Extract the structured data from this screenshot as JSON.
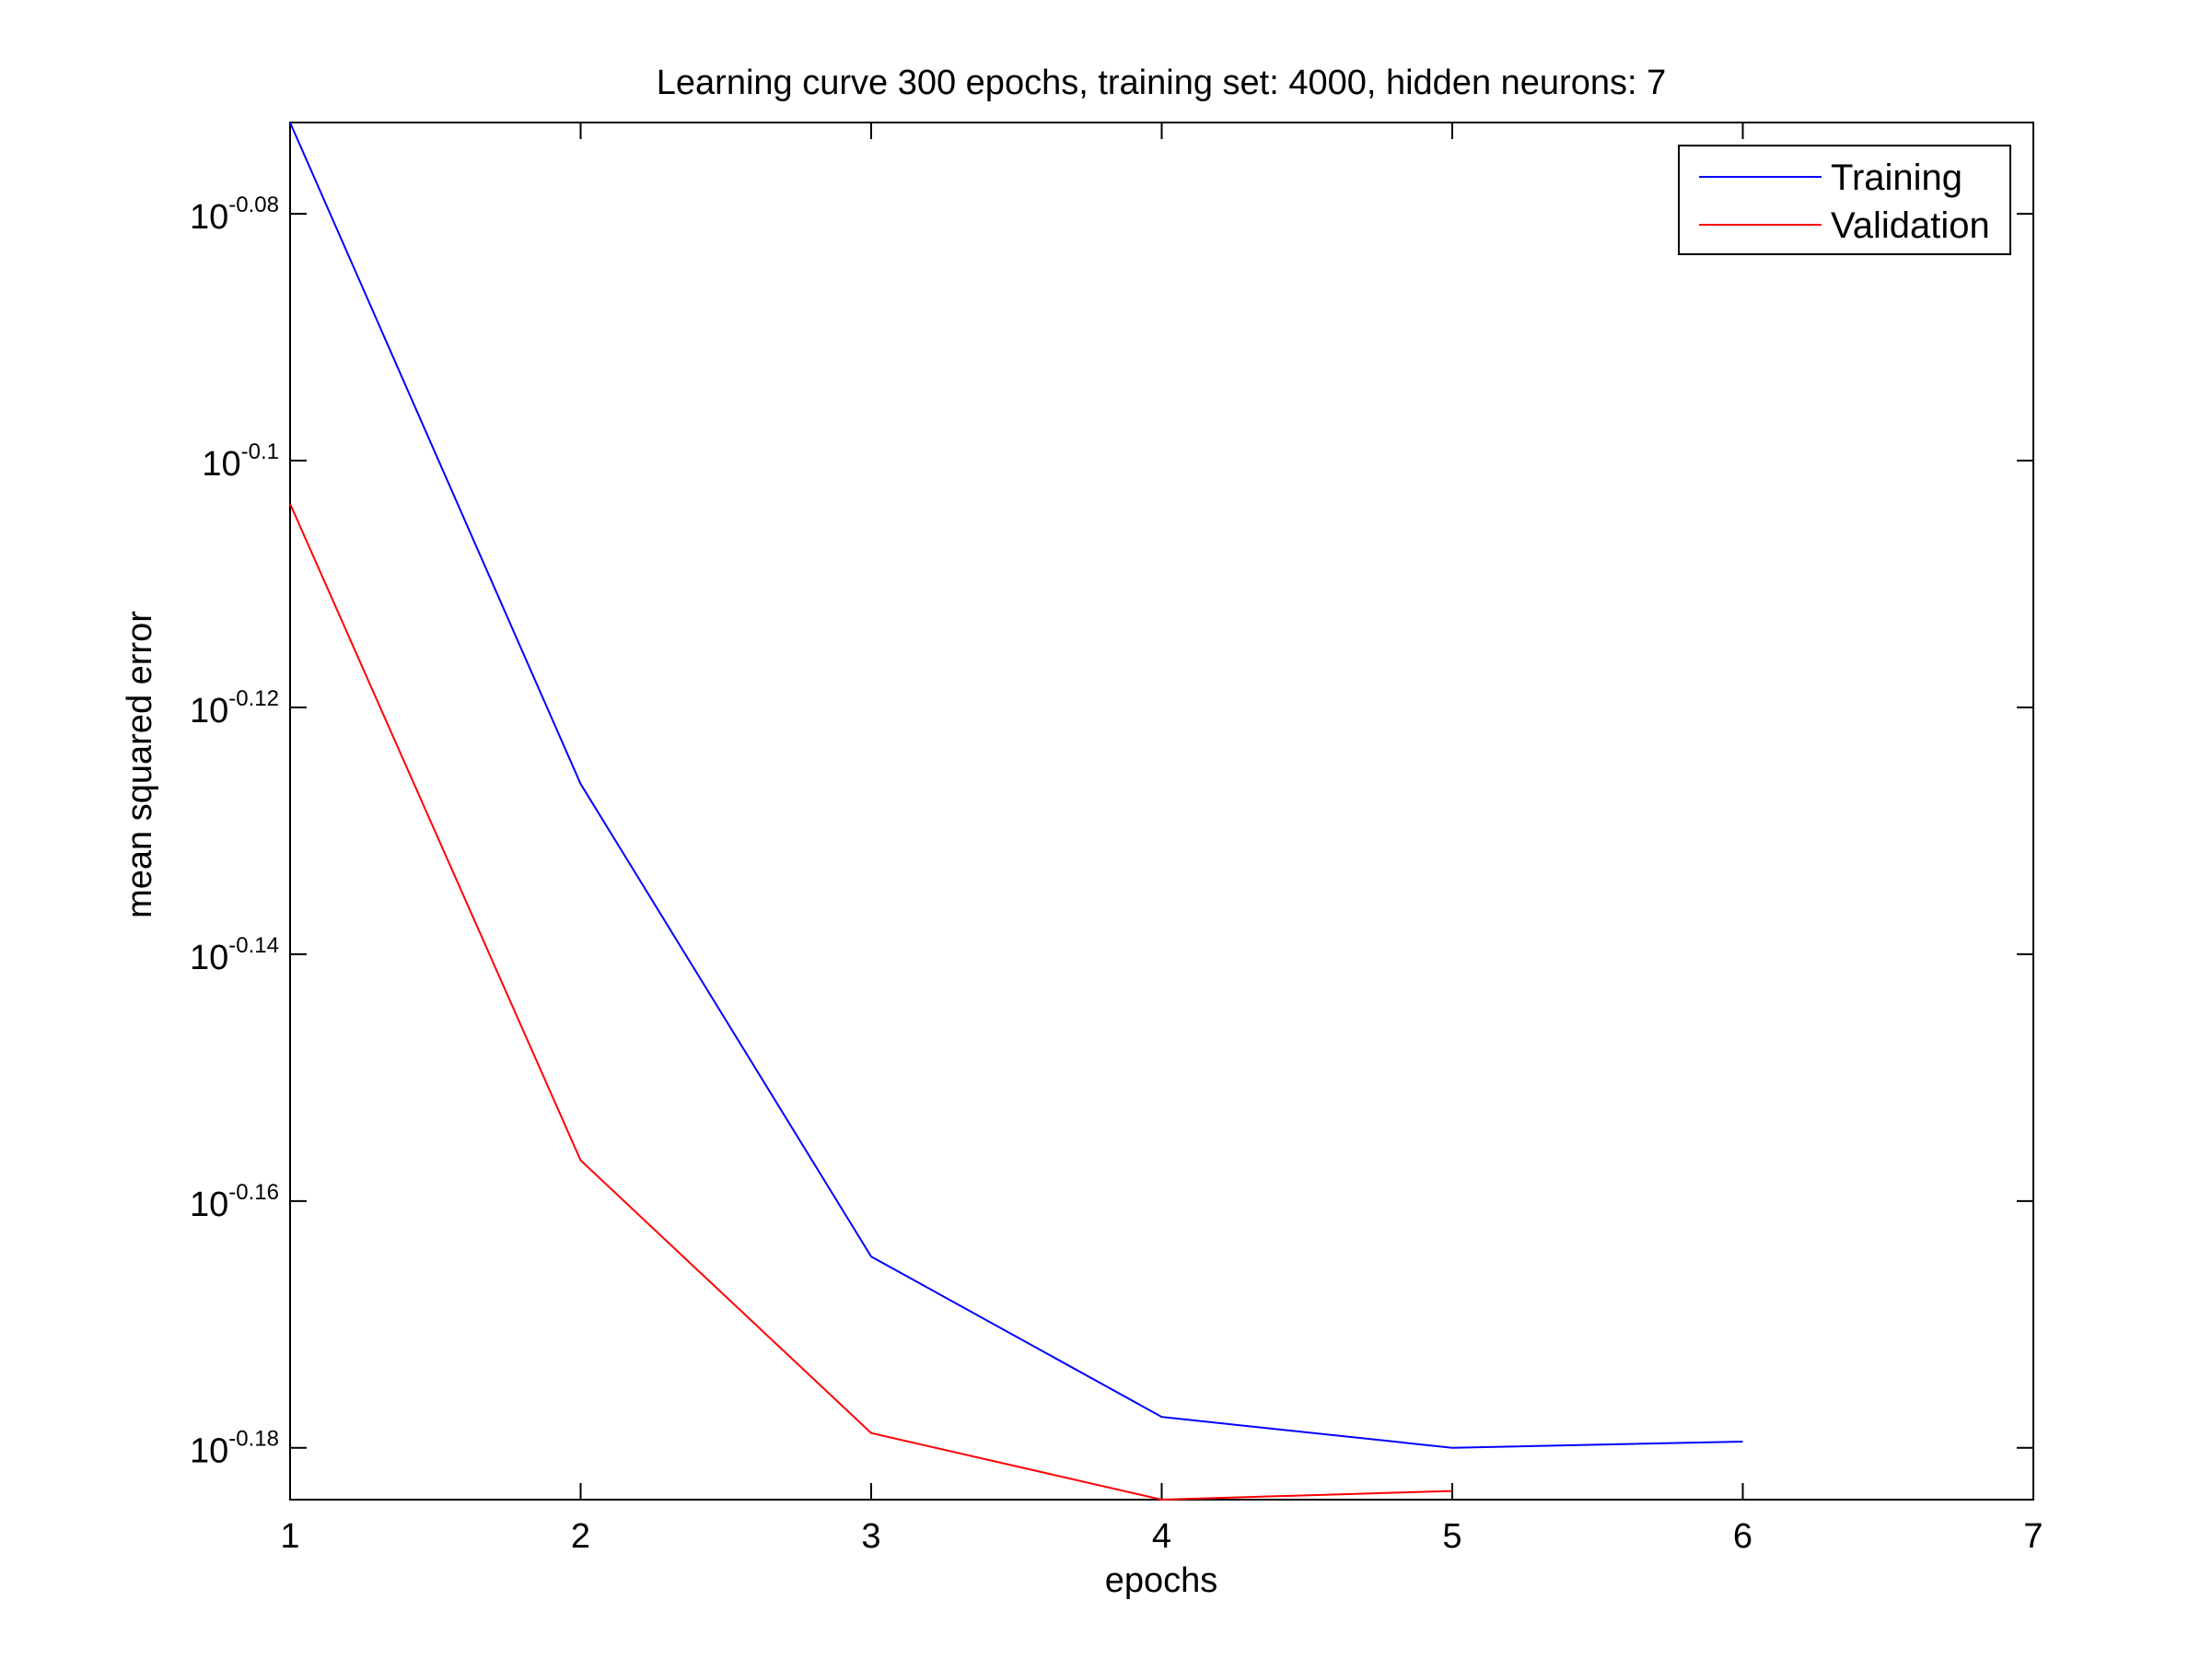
{
  "chart_data": {
    "type": "line",
    "title": "Learning curve 300 epochs, training set: 4000, hidden neurons: 7",
    "xlabel": "epochs",
    "ylabel": "mean squared error",
    "xlim": [
      1,
      7
    ],
    "ylim_log10": [
      -0.1842,
      -0.0726
    ],
    "yscale": "log",
    "x_ticks": [
      1,
      2,
      3,
      4,
      5,
      6,
      7
    ],
    "y_ticks": [
      {
        "base": "10",
        "exponent": "-0.08",
        "value": -0.08
      },
      {
        "base": "10",
        "exponent": "-0.1",
        "value": -0.1
      },
      {
        "base": "10",
        "exponent": "-0.12",
        "value": -0.12
      },
      {
        "base": "10",
        "exponent": "-0.14",
        "value": -0.14
      },
      {
        "base": "10",
        "exponent": "-0.16",
        "value": -0.16
      },
      {
        "base": "10",
        "exponent": "-0.18",
        "value": -0.18
      }
    ],
    "grid": false,
    "legend_position": "top-right",
    "series": [
      {
        "name": "Training",
        "color": "#0000ff",
        "x": [
          1,
          2,
          3,
          4,
          5,
          6
        ],
        "log10_y": [
          -0.0726,
          -0.1262,
          -0.1645,
          -0.1775,
          -0.18,
          -0.1795
        ]
      },
      {
        "name": "Validation",
        "color": "#ff0000",
        "x": [
          1,
          2,
          3,
          4,
          5
        ],
        "log10_y": [
          -0.1035,
          -0.1567,
          -0.1788,
          -0.1842,
          -0.1835
        ]
      }
    ]
  }
}
